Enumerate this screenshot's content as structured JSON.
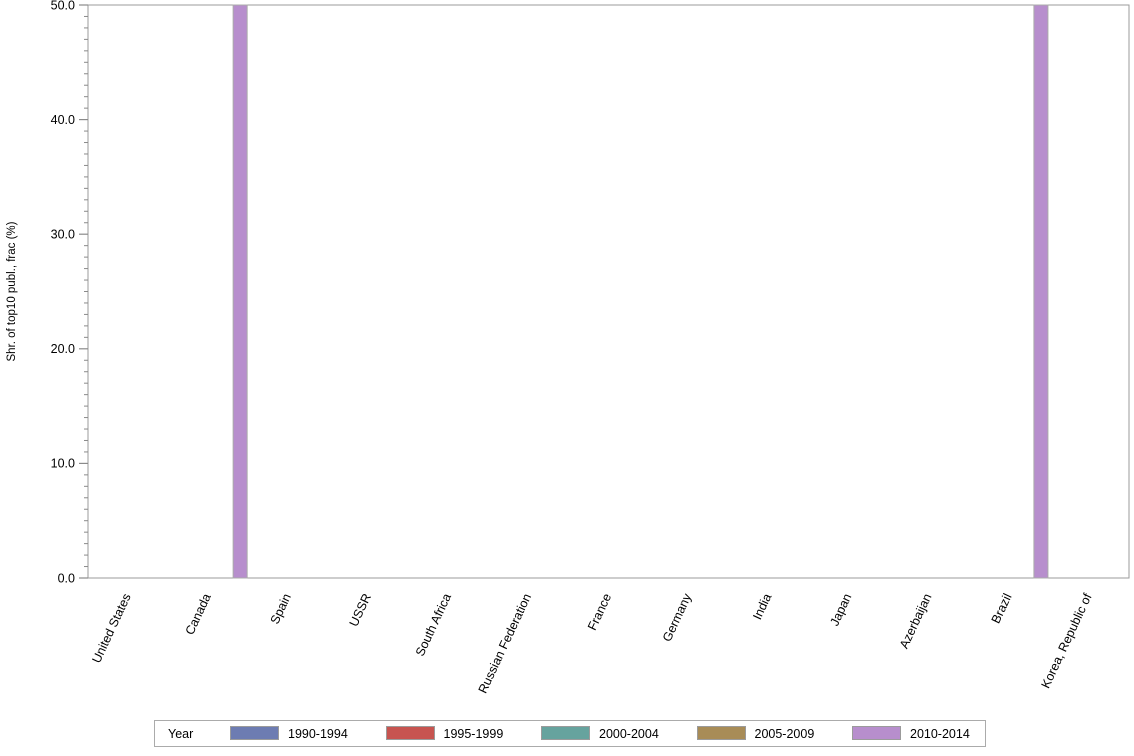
{
  "chart_data": {
    "type": "bar",
    "title": "",
    "xlabel": "",
    "ylabel": "Shr. of top10 publ., frac (%)",
    "ylim": [
      0,
      50
    ],
    "ytick_step": 10,
    "ytick_minor_step": 1,
    "ytick_labels": [
      "0.0",
      "10.0",
      "20.0",
      "30.0",
      "40.0",
      "50.0"
    ],
    "grid": false,
    "legend": {
      "title": "Year",
      "position": "bottom"
    },
    "categories": [
      "United States",
      "Canada",
      "Spain",
      "USSR",
      "South Africa",
      "Russian Federation",
      "France",
      "Germany",
      "India",
      "Japan",
      "Azerbaijan",
      "Brazil",
      "Korea, Republic of"
    ],
    "series": [
      {
        "name": "1990-1994",
        "color": "#6d7cb2",
        "values": [
          0,
          0,
          0,
          0,
          0,
          0,
          0,
          0,
          0,
          0,
          0,
          0,
          0
        ]
      },
      {
        "name": "1995-1999",
        "color": "#c75450",
        "values": [
          0,
          0,
          0,
          0,
          0,
          0,
          0,
          0,
          0,
          0,
          0,
          0,
          0
        ]
      },
      {
        "name": "2000-2004",
        "color": "#66a39e",
        "values": [
          0,
          0,
          0,
          0,
          0,
          0,
          0,
          0,
          0,
          0,
          0,
          0,
          0
        ]
      },
      {
        "name": "2005-2009",
        "color": "#a88c57",
        "values": [
          0,
          0,
          0,
          0,
          0,
          0,
          0,
          0,
          0,
          0,
          0,
          0,
          0
        ]
      },
      {
        "name": "2010-2014",
        "color": "#b78ecd",
        "values": [
          0,
          50,
          0,
          0,
          0,
          0,
          0,
          0,
          0,
          0,
          0,
          50,
          0
        ]
      }
    ],
    "colors": {
      "axis_frame": "#9b9b9b",
      "tick": "#8a8a8a",
      "bar_outline": "#ababab",
      "text": "#000000",
      "background": "#ffffff"
    }
  }
}
